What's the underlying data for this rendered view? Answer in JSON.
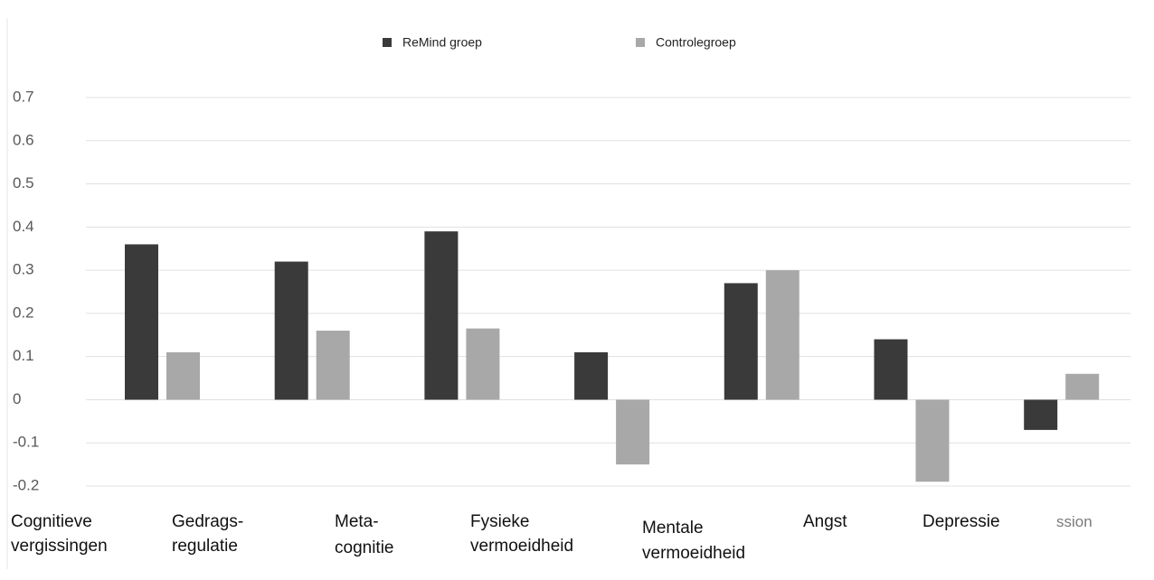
{
  "chart_data": {
    "type": "bar",
    "categories": [
      [
        "Cognitieve",
        "vergissingen"
      ],
      [
        "Gedrags-",
        "regulatie"
      ],
      [
        "Meta-",
        "cognitie"
      ],
      [
        "Fysieke",
        "vermoeidheid"
      ],
      [
        "Mentale",
        "vermoeidheid"
      ],
      [
        "Angst"
      ],
      [
        "Depressie"
      ]
    ],
    "annotations": [
      "ssion"
    ],
    "series": [
      {
        "name": "ReMind groep",
        "color": "#3a3a3a",
        "values": [
          0.36,
          0.32,
          0.39,
          0.11,
          0.27,
          0.14,
          -0.07
        ]
      },
      {
        "name": "Controlegroep",
        "color": "#a8a8a8",
        "values": [
          0.11,
          0.16,
          0.165,
          -0.15,
          0.3,
          -0.19,
          0.06
        ]
      }
    ],
    "ylim": [
      -0.2,
      0.7
    ],
    "yticks": [
      -0.2,
      -0.1,
      0,
      0.1,
      0.2,
      0.3,
      0.4,
      0.5,
      0.6,
      0.7
    ],
    "grid": true
  }
}
